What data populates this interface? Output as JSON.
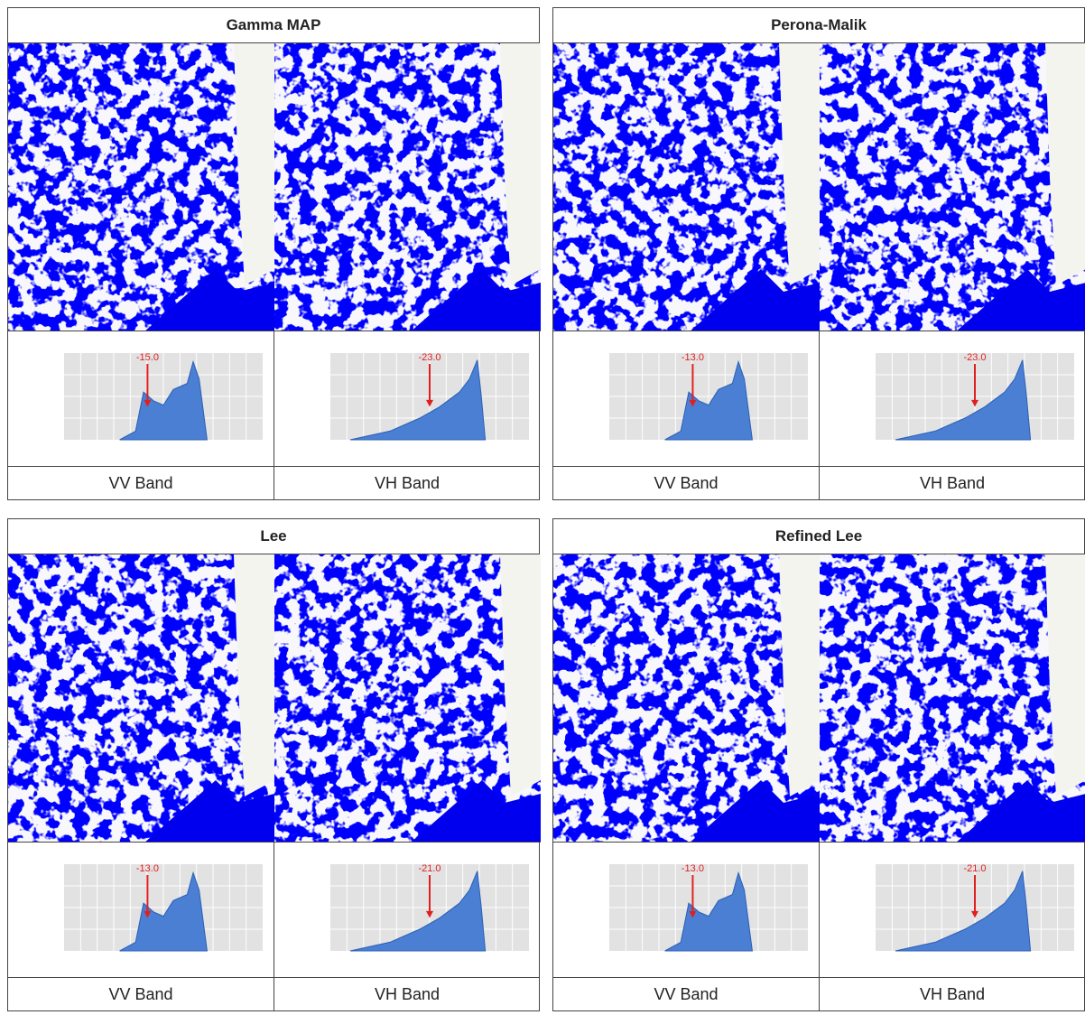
{
  "panels": [
    {
      "title": "Gamma MAP",
      "columns": [
        {
          "band": "VV Band",
          "threshold": "-15.0"
        },
        {
          "band": "VH Band",
          "threshold": "-23.0"
        }
      ]
    },
    {
      "title": "Perona-Malik",
      "columns": [
        {
          "band": "VV Band",
          "threshold": "-13.0"
        },
        {
          "band": "VH Band",
          "threshold": "-23.0"
        }
      ]
    },
    {
      "title": "Lee",
      "columns": [
        {
          "band": "VV Band",
          "threshold": "-13.0"
        },
        {
          "band": "VH Band",
          "threshold": "-21.0"
        }
      ]
    },
    {
      "title": "Refined Lee",
      "columns": [
        {
          "band": "VV Band",
          "threshold": "-13.0"
        },
        {
          "band": "VH Band",
          "threshold": "-21.0"
        }
      ]
    }
  ]
}
